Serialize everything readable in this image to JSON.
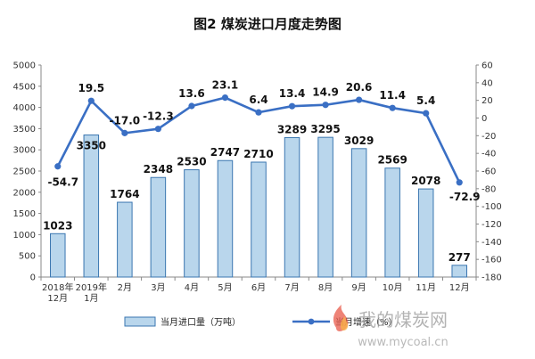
{
  "chart_data": {
    "type": "bar",
    "title": "图2 煤炭进口月度走势图",
    "categories": [
      [
        "2018年",
        "12月"
      ],
      [
        "2019年",
        "1月"
      ],
      [
        "2月"
      ],
      [
        "3月"
      ],
      [
        "4月"
      ],
      [
        "5月"
      ],
      [
        "6月"
      ],
      [
        "7月"
      ],
      [
        "8月"
      ],
      [
        "9月"
      ],
      [
        "10月"
      ],
      [
        "11月"
      ],
      [
        "12月"
      ]
    ],
    "series": [
      {
        "name": "当月进口量（万吨）",
        "type": "bar",
        "axis": "left",
        "values": [
          1023,
          3350,
          1764,
          2348,
          2530,
          2747,
          2710,
          3289,
          3295,
          3029,
          2569,
          2078,
          277
        ],
        "labels": [
          "1023",
          "3350",
          "1764",
          "2348",
          "2530",
          "2747",
          "2710",
          "3289",
          "3295",
          "3029",
          "2569",
          "2078",
          "277"
        ]
      },
      {
        "name": "当月增速（%）",
        "type": "line",
        "axis": "right",
        "values": [
          -54.7,
          19.5,
          -17.0,
          -12.3,
          13.6,
          23.1,
          6.4,
          13.4,
          14.9,
          20.6,
          11.4,
          5.4,
          -72.9
        ],
        "labels": [
          "-54.7",
          "19.5",
          "-17.0",
          "-12.3",
          "13.6",
          "23.1",
          "6.4",
          "13.4",
          "14.9",
          "20.6",
          "11.4",
          "5.4",
          "-72.9"
        ]
      }
    ],
    "y_left": {
      "lim": [
        0,
        5000
      ],
      "ticks": [
        "0",
        "500",
        "1000",
        "1500",
        "2000",
        "2500",
        "3000",
        "3500",
        "4000",
        "4500",
        "5000"
      ]
    },
    "y_right": {
      "lim": [
        -180,
        60
      ],
      "ticks": [
        "60",
        "40",
        "20",
        "0",
        "-20",
        "-40",
        "-60",
        "-80",
        "-100",
        "-120",
        "-140",
        "-160",
        "-180"
      ]
    },
    "grid": false,
    "legend": "bottom",
    "colors": {
      "bar_fill": "#b9d6ec",
      "bar_stroke": "#3a76b0",
      "line": "#3a6fc4"
    }
  },
  "watermark": {
    "cn": "我的煤炭网",
    "url": "www.mycoal.cn"
  }
}
